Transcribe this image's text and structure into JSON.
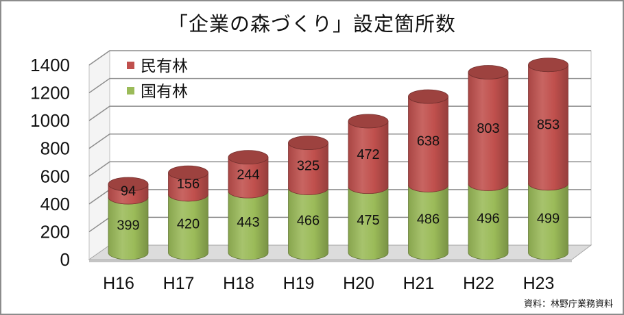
{
  "title": "「企業の森づくり」設定箇所数",
  "source": "資料：林野庁業務資料",
  "chart_data": {
    "type": "bar",
    "stacked": true,
    "style": "3d-cylinder",
    "title": "「企業の森づくり」設定箇所数",
    "categories": [
      "H16",
      "H17",
      "H18",
      "H19",
      "H20",
      "H21",
      "H22",
      "H23"
    ],
    "series": [
      {
        "name": "国有林",
        "color": "#9bbb59",
        "values": [
          399,
          420,
          443,
          466,
          475,
          486,
          496,
          499
        ]
      },
      {
        "name": "民有林",
        "color": "#c0504d",
        "values": [
          94,
          156,
          244,
          325,
          472,
          638,
          803,
          853
        ]
      }
    ],
    "legend_order": [
      "民有林",
      "国有林"
    ],
    "legend_position": "top-left",
    "ylim": [
      0,
      1400
    ],
    "yticks": [
      0,
      200,
      400,
      600,
      800,
      1000,
      1200,
      1400
    ],
    "grid": true,
    "xlabel": "",
    "ylabel": ""
  }
}
